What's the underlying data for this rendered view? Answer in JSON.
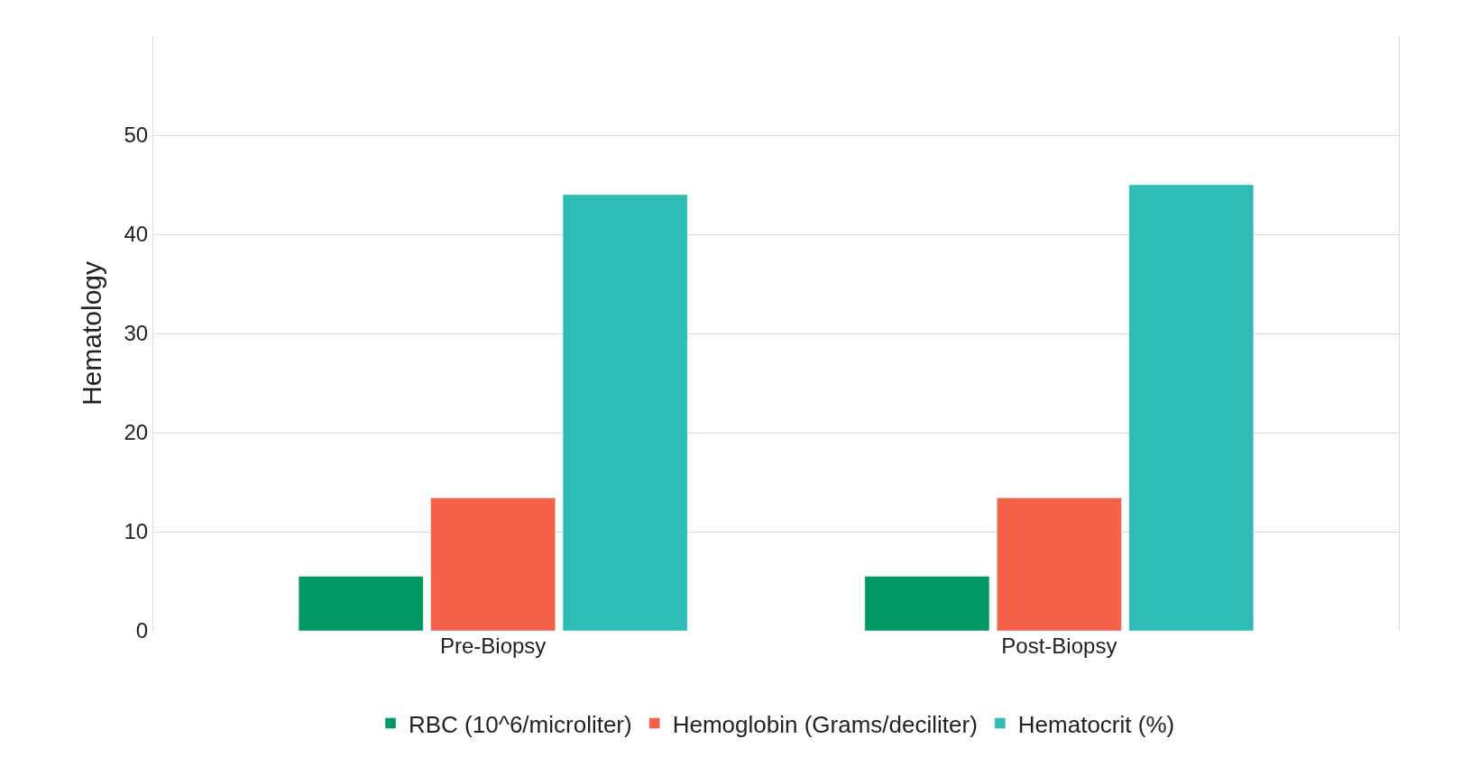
{
  "chart_data": {
    "type": "bar",
    "ylabel": "Hematology",
    "categories": [
      "Pre-Biopsy",
      "Post-Biopsy"
    ],
    "series": [
      {
        "name": "RBC (10^6/microliter)",
        "color": "#009966",
        "values": [
          5.5,
          5.5
        ]
      },
      {
        "name": "Hemoglobin (Grams/deciliter)",
        "color": "#f46148",
        "values": [
          13.4,
          13.4
        ]
      },
      {
        "name": "Hematocrit (%)",
        "color": "#2dbdb6",
        "values": [
          44,
          45
        ]
      }
    ],
    "ylim": [
      0,
      60
    ],
    "yticks": [
      0,
      10,
      20,
      30,
      40,
      50
    ],
    "grid": "y",
    "legend": "bottom"
  }
}
